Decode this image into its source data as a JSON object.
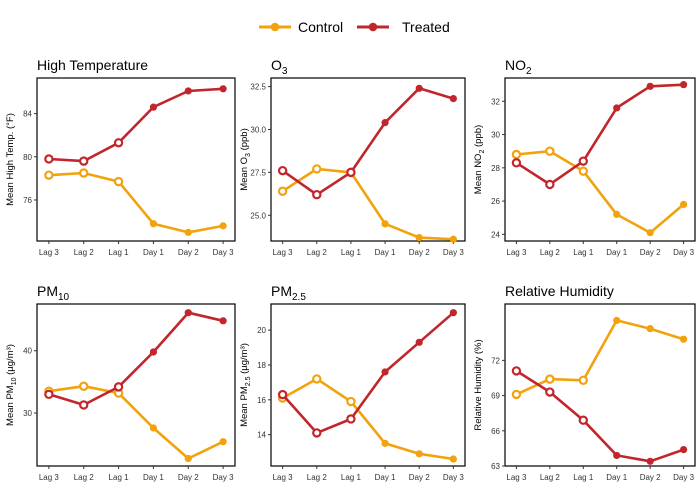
{
  "chart_data": {
    "type": "line",
    "categories": [
      "Lag 3",
      "Lag 2",
      "Lag 1",
      "Day 1",
      "Day 2",
      "Day 3"
    ],
    "legend": {
      "position": "top",
      "entries": [
        {
          "name": "Control",
          "color": "#F2A20C"
        },
        {
          "name": "Treated",
          "color": "#C1262C"
        }
      ]
    },
    "panels": [
      {
        "title": "High Temperature",
        "title_sub": "",
        "title_tail": "",
        "ylabel": "Mean High Temp. (°F)",
        "ylim": [
          72.2,
          87.3
        ],
        "yticks": [
          76,
          80,
          84
        ],
        "ytick_labels": [
          "76",
          "80",
          "84"
        ],
        "series": [
          {
            "name": "Control",
            "values": [
              78.3,
              78.5,
              77.7,
              73.8,
              73.0,
              73.6
            ]
          },
          {
            "name": "Treated",
            "values": [
              79.8,
              79.6,
              81.3,
              84.6,
              86.1,
              86.3
            ]
          }
        ]
      },
      {
        "title": "O",
        "title_sub": "3",
        "title_tail": "",
        "ylabel": "Mean O",
        "ylabel_sub": "3",
        "ylabel_tail": " (ppb)",
        "ylim": [
          23.5,
          33.0
        ],
        "yticks": [
          25.0,
          27.5,
          30.0,
          32.5
        ],
        "ytick_labels": [
          "25.0",
          "27.5",
          "30.0",
          "32.5"
        ],
        "series": [
          {
            "name": "Control",
            "values": [
              26.4,
              27.7,
              27.5,
              24.5,
              23.7,
              23.6
            ]
          },
          {
            "name": "Treated",
            "values": [
              27.6,
              26.2,
              27.5,
              30.4,
              32.4,
              31.8
            ]
          }
        ]
      },
      {
        "title": "NO",
        "title_sub": "2",
        "title_tail": "",
        "ylabel": "Mean NO",
        "ylabel_sub": "2",
        "ylabel_tail": " (ppb)",
        "ylim": [
          23.6,
          33.4
        ],
        "yticks": [
          24,
          26,
          28,
          30,
          32
        ],
        "ytick_labels": [
          "24",
          "26",
          "28",
          "30",
          "32"
        ],
        "series": [
          {
            "name": "Control",
            "values": [
              28.8,
              29.0,
              27.8,
              25.2,
              24.1,
              25.8
            ]
          },
          {
            "name": "Treated",
            "values": [
              28.3,
              27.0,
              28.4,
              31.6,
              32.9,
              33.0
            ]
          }
        ]
      },
      {
        "title": "PM",
        "title_sub": "10",
        "title_tail": "",
        "ylabel": "Mean PM",
        "ylabel_sub": "10",
        "ylabel_tail": " (µg/m³)",
        "ylim": [
          21.5,
          47.5
        ],
        "yticks": [
          30,
          40
        ],
        "ytick_labels": [
          "30",
          "40"
        ],
        "series": [
          {
            "name": "Control",
            "values": [
              33.5,
              34.3,
              33.2,
              27.6,
              22.7,
              25.4
            ]
          },
          {
            "name": "Treated",
            "values": [
              33.0,
              31.3,
              34.2,
              39.8,
              46.1,
              44.8
            ]
          }
        ]
      },
      {
        "title": "PM",
        "title_sub": "2.5",
        "title_tail": "",
        "ylabel": "Mean PM",
        "ylabel_sub": "2.5",
        "ylabel_tail": " (µg/m³)",
        "ylim": [
          12.2,
          21.5
        ],
        "yticks": [
          14,
          16,
          18,
          20
        ],
        "ytick_labels": [
          "14",
          "16",
          "18",
          "20"
        ],
        "series": [
          {
            "name": "Control",
            "values": [
              16.1,
              17.2,
              15.9,
              13.5,
              12.9,
              12.6
            ]
          },
          {
            "name": "Treated",
            "values": [
              16.3,
              14.1,
              14.9,
              17.6,
              19.3,
              21.0
            ]
          }
        ]
      },
      {
        "title": "Relative Humidity",
        "title_sub": "",
        "title_tail": "",
        "ylabel": "Relative Humidity (%)",
        "ylim": [
          63.0,
          76.8
        ],
        "yticks": [
          63,
          66,
          69,
          72
        ],
        "ytick_labels": [
          "63",
          "66",
          "69",
          "72"
        ],
        "series": [
          {
            "name": "Control",
            "values": [
              69.1,
              70.4,
              70.3,
              75.4,
              74.7,
              73.8
            ]
          },
          {
            "name": "Treated",
            "values": [
              71.1,
              69.3,
              66.9,
              63.9,
              63.4,
              64.4
            ]
          }
        ]
      }
    ]
  }
}
